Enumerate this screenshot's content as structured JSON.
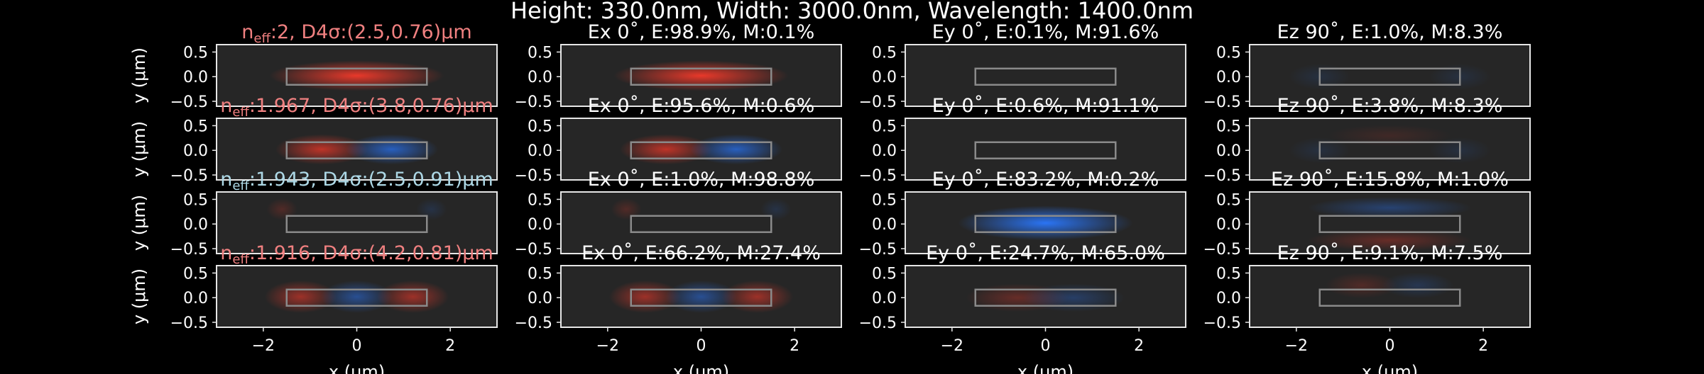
{
  "suptitle": "Height: 330.0nm, Width: 3000.0nm, Wavelength: 1400.0nm",
  "colors": {
    "background": "#000000",
    "axes_face": "#262626",
    "frame": "#e6e6e6",
    "text": "#ffffff",
    "title_red": "#f08080",
    "title_blue": "#add8e6",
    "field_red": "#ff3a2a",
    "field_blue": "#2a78ff",
    "waveguide": "#8a8a8a"
  },
  "chart_data": {
    "type": "heatmap",
    "grid": {
      "rows": 4,
      "cols": 4
    },
    "xlabel": "x (μm)",
    "ylabel": "y (μm)",
    "xlim": [
      -3,
      3
    ],
    "ylim": [
      -0.6,
      0.65
    ],
    "xticks": [
      -2,
      0,
      2
    ],
    "yticks": [
      0.5,
      0.0,
      -0.5
    ],
    "waveguide": {
      "x": [
        -1.5,
        1.5
      ],
      "y": [
        -0.165,
        0.165
      ]
    },
    "modes": [
      {
        "label_sub": "eff",
        "label_rest": ":2, D4σ:(2.5,0.76)μm",
        "label_color": "red",
        "components": [
          {
            "title": "Ex 0˚, E:98.9%, M:0.1%",
            "lobes": [
              {
                "x": 0,
                "y": 0.02,
                "sx": 0.85,
                "sy": 0.14,
                "amp": 0.9,
                "sign": 1
              }
            ]
          },
          {
            "title": "Ey 0˚, E:0.1%, M:91.6%",
            "lobes": []
          },
          {
            "title": "Ez 90˚, E:1.0%, M:8.3%",
            "lobes": [
              {
                "x": -1.5,
                "y": 0,
                "sx": 0.3,
                "sy": 0.12,
                "amp": 0.12,
                "sign": -1
              },
              {
                "x": 1.5,
                "y": 0,
                "sx": 0.3,
                "sy": 0.12,
                "amp": 0.12,
                "sign": -1
              }
            ]
          }
        ]
      },
      {
        "label_sub": "eff",
        "label_rest": ":1.967, D4σ:(3.8,0.76)μm",
        "label_color": "red",
        "components": [
          {
            "title": "Ex 0˚, E:95.6%, M:0.6%",
            "lobes": [
              {
                "x": -0.75,
                "y": 0.02,
                "sx": 0.45,
                "sy": 0.14,
                "amp": 0.7,
                "sign": 1
              },
              {
                "x": 0.75,
                "y": 0.02,
                "sx": 0.45,
                "sy": 0.14,
                "amp": 0.7,
                "sign": -1
              }
            ]
          },
          {
            "title": "Ey 0˚, E:0.6%, M:91.1%",
            "lobes": []
          },
          {
            "title": "Ez 90˚, E:3.8%, M:8.3%",
            "lobes": [
              {
                "x": 0,
                "y": 0.3,
                "sx": 0.6,
                "sy": 0.1,
                "amp": 0.12,
                "sign": 1
              },
              {
                "x": -1.5,
                "y": 0,
                "sx": 0.3,
                "sy": 0.12,
                "amp": 0.12,
                "sign": -1
              },
              {
                "x": 1.5,
                "y": 0,
                "sx": 0.3,
                "sy": 0.12,
                "amp": 0.12,
                "sign": -1
              }
            ]
          }
        ]
      },
      {
        "label_sub": "eff",
        "label_rest": ":1.943, D4σ:(2.5,0.91)μm",
        "label_color": "blue",
        "components": [
          {
            "title": "Ex 0˚, E:1.0%, M:98.8%",
            "lobes": [
              {
                "x": -1.6,
                "y": 0.3,
                "sx": 0.15,
                "sy": 0.1,
                "amp": 0.2,
                "sign": 1
              },
              {
                "x": 1.6,
                "y": 0.3,
                "sx": 0.15,
                "sy": 0.1,
                "amp": 0.15,
                "sign": -1
              }
            ]
          },
          {
            "title": "Ey 0˚, E:83.2%, M:0.2%",
            "lobes": [
              {
                "x": 0,
                "y": 0.02,
                "sx": 0.85,
                "sy": 0.16,
                "amp": 0.95,
                "sign": -1
              }
            ]
          },
          {
            "title": "Ez 90˚, E:15.8%, M:1.0%",
            "lobes": [
              {
                "x": 0,
                "y": 0.33,
                "sx": 0.8,
                "sy": 0.1,
                "amp": 0.35,
                "sign": -1
              },
              {
                "x": 0,
                "y": -0.33,
                "sx": 0.8,
                "sy": 0.1,
                "amp": 0.3,
                "sign": 1
              }
            ]
          }
        ]
      },
      {
        "label_sub": "eff",
        "label_rest": ":1.916, D4σ:(4.2,0.81)μm",
        "label_color": "red",
        "components": [
          {
            "title": "Ex 0˚, E:66.2%, M:27.4%",
            "lobes": [
              {
                "x": -1.2,
                "y": 0.02,
                "sx": 0.35,
                "sy": 0.15,
                "amp": 0.55,
                "sign": 1
              },
              {
                "x": 0,
                "y": 0.02,
                "sx": 0.35,
                "sy": 0.15,
                "amp": 0.5,
                "sign": -1
              },
              {
                "x": 1.2,
                "y": 0.02,
                "sx": 0.35,
                "sy": 0.15,
                "amp": 0.55,
                "sign": 1
              }
            ]
          },
          {
            "title": "Ey 0˚, E:24.7%, M:65.0%",
            "lobes": [
              {
                "x": -0.6,
                "y": 0.0,
                "sx": 0.5,
                "sy": 0.13,
                "amp": 0.3,
                "sign": 1
              },
              {
                "x": 0.6,
                "y": 0.0,
                "sx": 0.5,
                "sy": 0.13,
                "amp": 0.3,
                "sign": -1
              }
            ]
          },
          {
            "title": "Ez 90˚, E:9.1%, M:7.5%",
            "lobes": [
              {
                "x": -0.6,
                "y": 0.25,
                "sx": 0.35,
                "sy": 0.12,
                "amp": 0.2,
                "sign": 1
              },
              {
                "x": 0.6,
                "y": 0.25,
                "sx": 0.35,
                "sy": 0.12,
                "amp": 0.2,
                "sign": -1
              }
            ]
          }
        ]
      }
    ]
  }
}
